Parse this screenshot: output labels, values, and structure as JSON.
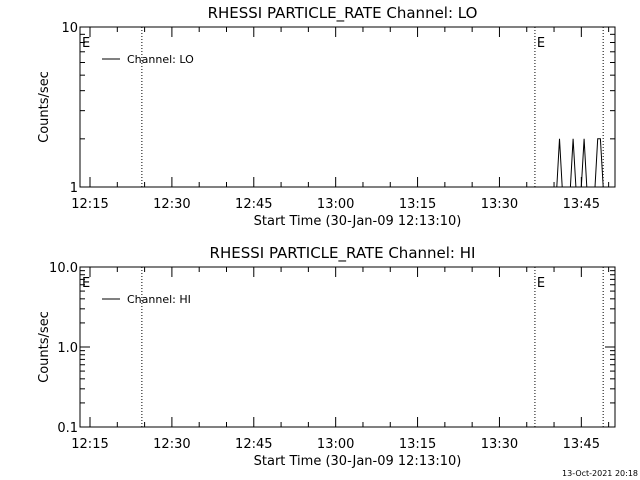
{
  "footer": {
    "timestamp": "13-Oct-2021 20:18"
  },
  "chart_data": [
    {
      "type": "line",
      "title": "RHESSI PARTICLE_RATE Channel: LO",
      "xlabel": "Start Time (30-Jan-09 12:13:10)",
      "ylabel": "Counts/sec",
      "y_scale": "log",
      "ylim": [
        1,
        10
      ],
      "y_ticks": [
        {
          "value": 1,
          "label": "1"
        },
        {
          "value": 10,
          "label": "10"
        }
      ],
      "xlim": [
        "12:13:10",
        "13:51:10"
      ],
      "x_ticks": [
        "12:15",
        "12:30",
        "12:45",
        "13:00",
        "13:15",
        "13:30",
        "13:45"
      ],
      "legend": {
        "position": "top-left",
        "entries": [
          "Channel: LO"
        ]
      },
      "event_lines": [
        {
          "time": "12:24:30",
          "label": ""
        },
        {
          "time": "13:36:30",
          "label": "E"
        },
        {
          "time": "13:49:00",
          "label": ""
        }
      ],
      "corner_label": "E",
      "series": [
        {
          "name": "Channel: LO",
          "x": [
            "13:40:30",
            "13:41:00",
            "13:41:30",
            "13:42:00",
            "13:43:00",
            "13:43:30",
            "13:44:00",
            "13:45:00",
            "13:45:30",
            "13:46:00",
            "13:47:30",
            "13:48:00",
            "13:48:30",
            "13:49:00"
          ],
          "y": [
            1,
            2,
            1,
            1,
            1,
            2,
            1,
            1,
            2,
            1,
            1,
            2,
            2,
            1
          ]
        }
      ]
    },
    {
      "type": "line",
      "title": "RHESSI PARTICLE_RATE Channel: HI",
      "xlabel": "Start Time (30-Jan-09 12:13:10)",
      "ylabel": "Counts/sec",
      "y_scale": "log",
      "ylim": [
        0.1,
        10
      ],
      "y_ticks": [
        {
          "value": 0.1,
          "label": "0.1"
        },
        {
          "value": 1,
          "label": "1.0"
        },
        {
          "value": 10,
          "label": "10.0"
        }
      ],
      "xlim": [
        "12:13:10",
        "13:51:10"
      ],
      "x_ticks": [
        "12:15",
        "12:30",
        "12:45",
        "13:00",
        "13:15",
        "13:30",
        "13:45"
      ],
      "legend": {
        "position": "top-left",
        "entries": [
          "Channel: HI"
        ]
      },
      "event_lines": [
        {
          "time": "12:24:30",
          "label": ""
        },
        {
          "time": "13:36:30",
          "label": "E"
        },
        {
          "time": "13:49:00",
          "label": ""
        }
      ],
      "corner_label": "E",
      "series": [
        {
          "name": "Channel: HI",
          "x": [],
          "y": []
        }
      ]
    }
  ]
}
